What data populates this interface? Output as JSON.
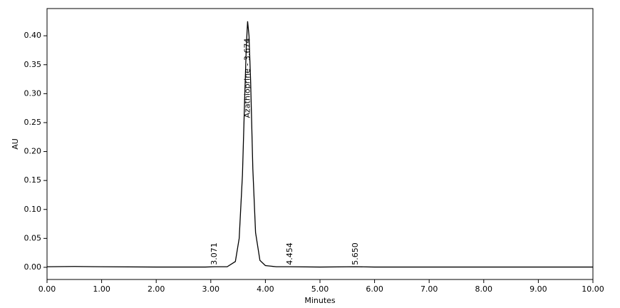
{
  "chart_data": {
    "type": "line",
    "x_label": "Minutes",
    "y_label": "AU",
    "x": [
      0,
      0.5,
      1,
      2,
      2.9,
      3.071,
      3.3,
      3.45,
      3.52,
      3.58,
      3.62,
      3.65,
      3.674,
      3.7,
      3.73,
      3.77,
      3.82,
      3.9,
      4.0,
      4.2,
      4.454,
      5,
      5.65,
      6,
      8,
      10
    ],
    "series": [
      {
        "color": "#000000",
        "values": [
          0.001,
          0.0015,
          0.001,
          0.0005,
          0.0005,
          0.001,
          0.001,
          0.01,
          0.05,
          0.16,
          0.29,
          0.38,
          0.425,
          0.4,
          0.32,
          0.17,
          0.06,
          0.012,
          0.003,
          0.001,
          0.001,
          0.0005,
          0.001,
          0.0005,
          0.0005,
          0.0005
        ]
      }
    ],
    "annotations": [
      {
        "label": "3.071",
        "x": 3.071,
        "y": 0.004
      },
      {
        "label": "Azathioprine - 3.674",
        "x": 3.674,
        "y": 0.258
      },
      {
        "label": "4.454",
        "x": 4.454,
        "y": 0.004
      },
      {
        "label": "5.650",
        "x": 5.65,
        "y": 0.004
      }
    ],
    "xlim": [
      0,
      10
    ],
    "ylim": [
      -0.021,
      0.447
    ],
    "xticks": [
      {
        "value": 0,
        "label": "0.00"
      },
      {
        "value": 1,
        "label": "1.00"
      },
      {
        "value": 2,
        "label": "2.00"
      },
      {
        "value": 3,
        "label": "3.00"
      },
      {
        "value": 4,
        "label": "4.00"
      },
      {
        "value": 5,
        "label": "5.00"
      },
      {
        "value": 6,
        "label": "6.00"
      },
      {
        "value": 7,
        "label": "7.00"
      },
      {
        "value": 8,
        "label": "8.00"
      },
      {
        "value": 9,
        "label": "9.00"
      },
      {
        "value": 10,
        "label": "10.00"
      }
    ],
    "yticks": [
      {
        "value": 0,
        "label": "0.00"
      },
      {
        "value": 0.05,
        "label": "0.05"
      },
      {
        "value": 0.1,
        "label": "0.10"
      },
      {
        "value": 0.15,
        "label": "0.15"
      },
      {
        "value": 0.2,
        "label": "0.20"
      },
      {
        "value": 0.25,
        "label": "0.25"
      },
      {
        "value": 0.3,
        "label": "0.30"
      },
      {
        "value": 0.35,
        "label": "0.35"
      },
      {
        "value": 0.4,
        "label": "0.40"
      }
    ],
    "grid": false
  }
}
